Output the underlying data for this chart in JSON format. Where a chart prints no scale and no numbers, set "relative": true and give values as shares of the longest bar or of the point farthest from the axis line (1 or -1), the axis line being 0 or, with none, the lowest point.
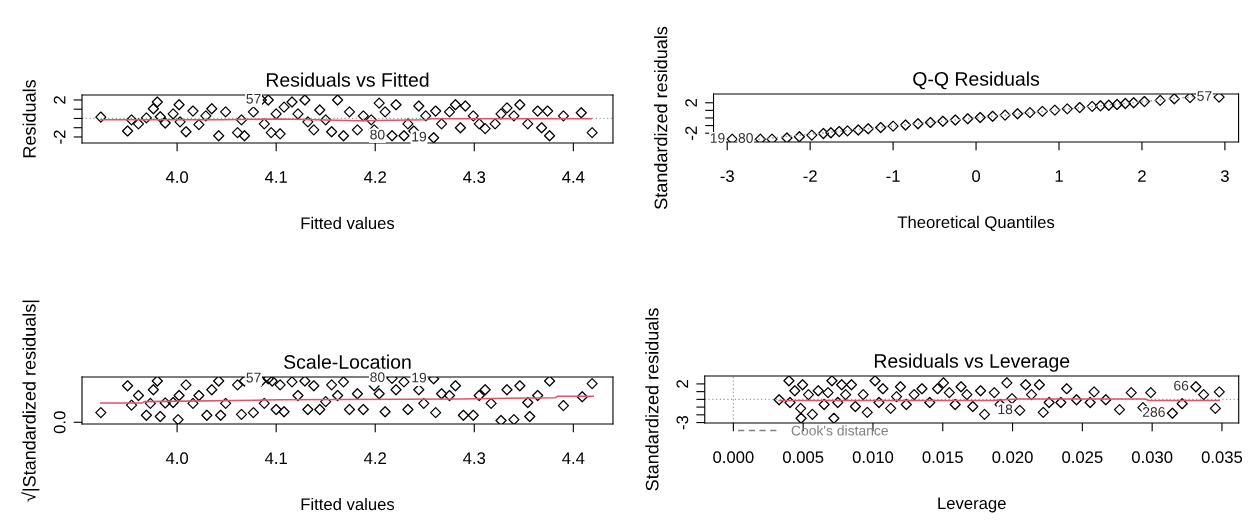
{
  "chart_data": [
    {
      "type": "scatter",
      "title": "Residuals vs Fitted",
      "xlabel": "Fitted values",
      "ylabel": "Residuals",
      "marker": "diamond",
      "xlim": [
        3.904,
        4.44
      ],
      "xticks": [
        {
          "value": 4.0,
          "label": "4.0"
        },
        4.1,
        4.2,
        4.3,
        4.4
      ],
      "ylim": [
        -2.65,
        2.54
      ],
      "yticks": [
        -2,
        {
          "value": -1,
          "label": null
        },
        {
          "value": 0,
          "label": null
        },
        {
          "value": 1,
          "label": null
        },
        2
      ],
      "ref_lines": [
        {
          "axis": "y",
          "value": 0,
          "color": "#a0a0a0",
          "line_style": "dotted"
        }
      ],
      "annotations": [
        {
          "text": "57",
          "x": 4.092,
          "y": 2.0
        },
        {
          "text": "80",
          "x": 4.217,
          "y": -1.87
        },
        {
          "text": "19",
          "x": 4.259,
          "y": -2.09
        }
      ],
      "series": [
        {
          "type": "scatter",
          "color": "#000000",
          "x": [
            3.923,
            3.95,
            3.954,
            3.961,
            3.969,
            3.976,
            3.98,
            3.983,
            3.988,
            3.996,
            4.002,
            4.003,
            4.009,
            4.016,
            4.022,
            4.029,
            4.035,
            4.042,
            4.049,
            4.061,
            4.065,
            4.068,
            4.077,
            4.085,
            4.088,
            4.092,
            4.095,
            4.1,
            4.104,
            4.108,
            4.116,
            4.122,
            4.129,
            4.132,
            4.138,
            4.144,
            4.15,
            4.156,
            4.162,
            4.168,
            4.174,
            4.182,
            4.188,
            4.196,
            4.199,
            4.204,
            4.21,
            4.217,
            4.221,
            4.229,
            4.233,
            4.239,
            4.244,
            4.251,
            4.259,
            4.261,
            4.267,
            4.275,
            4.281,
            4.286,
            4.291,
            4.299,
            4.305,
            4.311,
            4.321,
            4.327,
            4.333,
            4.34,
            4.346,
            4.354,
            4.364,
            4.368,
            4.374,
            4.376,
            4.39,
            4.408,
            4.419
          ],
          "values": [
            0.15,
            -1.35,
            -0.15,
            -0.58,
            0.06,
            1.05,
            1.78,
            0.19,
            -0.49,
            0.49,
            1.48,
            -0.37,
            -1.44,
            0.8,
            -0.67,
            0.28,
            1.05,
            -1.87,
            0.71,
            -1.53,
            -0.15,
            -1.87,
            0.71,
            2.0,
            -0.58,
            2.0,
            -1.53,
            0.49,
            -1.66,
            1.23,
            1.78,
            0.49,
            2.0,
            -0.37,
            -1.23,
            0.92,
            -0.15,
            -1.44,
            2.0,
            -1.87,
            0.71,
            -1.23,
            0.28,
            -0.15,
            -1.23,
            1.66,
            0.71,
            -1.87,
            1.48,
            -1.87,
            -0.58,
            -1.35,
            1.35,
            0.28,
            -2.09,
            0.8,
            -0.58,
            0.71,
            1.48,
            -1.01,
            1.35,
            0.28,
            -0.58,
            -1.1,
            -0.58,
            0.49,
            1.14,
            0.28,
            1.48,
            -0.58,
            0.8,
            -1.01,
            0.8,
            -1.87,
            0.28,
            0.62,
            -1.53
          ]
        },
        {
          "type": "line",
          "marker": "none",
          "color": "#df536b",
          "x": [
            3.923,
            4.043,
            4.104,
            4.184,
            4.251,
            4.257,
            4.325,
            4.418
          ],
          "values": [
            -0.15,
            -0.15,
            -0.06,
            -0.24,
            -0.15,
            -0.02,
            -0.02,
            -0.02
          ]
        }
      ]
    },
    {
      "type": "scatter",
      "title": "Q-Q Residuals",
      "xlabel": "Theoretical Quantiles",
      "ylabel": "Standardized residuals",
      "marker": "diamond",
      "xlim": [
        -3.165,
        3.165
      ],
      "xticks": [
        -3,
        -2,
        -1,
        0,
        1,
        2,
        3
      ],
      "ylim": [
        -3.16,
        3.16
      ],
      "yticks": [
        -2,
        {
          "value": -1,
          "label": null
        },
        {
          "value": 0,
          "label": null
        },
        {
          "value": 1,
          "label": null
        },
        2
      ],
      "annotations": [
        {
          "text": "19",
          "x": -2.94,
          "y": -2.79
        },
        {
          "text": "80",
          "x": -2.6,
          "y": -2.79
        },
        {
          "text": "57",
          "x": 2.93,
          "y": 2.74
        }
      ],
      "series": [
        {
          "type": "line",
          "marker": "none",
          "line_style": "dotted",
          "color": "#a0a0a0",
          "x": [
            -2.9,
            2.9
          ],
          "values": [
            -3.1,
            3.1
          ]
        },
        {
          "type": "scatter",
          "color": "#000000",
          "x": [
            -2.94,
            -2.6,
            -2.46,
            -2.28,
            -2.13,
            -1.98,
            -1.84,
            -1.75,
            -1.65,
            -1.55,
            -1.42,
            -1.3,
            -1.15,
            -1.0,
            -0.85,
            -0.7,
            -0.55,
            -0.4,
            -0.25,
            -0.1,
            0.05,
            0.2,
            0.35,
            0.5,
            0.65,
            0.8,
            0.95,
            1.1,
            1.25,
            1.4,
            1.5,
            1.6,
            1.7,
            1.8,
            1.9,
            2.03,
            2.22,
            2.39,
            2.58,
            2.93
          ],
          "values": [
            -2.79,
            -2.79,
            -2.79,
            -2.63,
            -2.47,
            -2.26,
            -2.05,
            -1.95,
            -1.79,
            -1.7,
            -1.58,
            -1.42,
            -1.25,
            -1.08,
            -0.92,
            -0.76,
            -0.59,
            -0.43,
            -0.27,
            -0.11,
            0.06,
            0.22,
            0.38,
            0.55,
            0.71,
            0.87,
            1.03,
            1.2,
            1.37,
            1.52,
            1.6,
            1.68,
            1.78,
            1.9,
            2.0,
            2.16,
            2.32,
            2.53,
            2.68,
            2.74
          ]
        }
      ]
    },
    {
      "type": "scatter",
      "title": "Scale-Location",
      "xlabel": "Fitted values",
      "ylabel": "√|Standardized residuals|",
      "marker": "diamond",
      "xlim": [
        3.904,
        4.44
      ],
      "xticks": [
        {
          "value": 4.0,
          "label": "4.0"
        },
        4.1,
        4.2,
        4.3,
        4.4
      ],
      "relative": true,
      "annotations": [
        "0.0",
        {
          "text": "57",
          "x": 4.092,
          "y": 0.99
        },
        {
          "text": "80",
          "x": 4.217,
          "y": 1
        },
        {
          "text": "19",
          "x": 4.259,
          "y": 0.99
        }
      ],
      "series": [
        {
          "type": "scatter",
          "color": "#000000",
          "x": [
            3.923,
            3.95,
            3.954,
            3.961,
            3.969,
            3.973,
            3.976,
            3.98,
            3.983,
            3.988,
            3.996,
            4.002,
            4.001,
            4.009,
            4.016,
            4.022,
            4.03,
            4.035,
            4.042,
            4.044,
            4.049,
            4.061,
            4.065,
            4.068,
            4.077,
            4.085,
            4.088,
            4.092,
            4.096,
            4.1,
            4.104,
            4.108,
            4.116,
            4.122,
            4.129,
            4.132,
            4.138,
            4.144,
            4.15,
            4.156,
            4.162,
            4.168,
            4.174,
            4.182,
            4.188,
            4.199,
            4.204,
            4.21,
            4.217,
            4.221,
            4.229,
            4.233,
            4.244,
            4.249,
            4.259,
            4.261,
            4.267,
            4.275,
            4.281,
            4.289,
            4.299,
            4.305,
            4.311,
            4.317,
            4.327,
            4.333,
            4.34,
            4.346,
            4.354,
            4.356,
            4.364,
            4.376,
            4.39,
            4.409,
            4.419
          ],
          "values": [
            0.22,
            0.83,
            0.39,
            0.61,
            0.16,
            0.43,
            0.74,
            0.94,
            0.13,
            0.44,
            0.45,
            0.61,
            0.06,
            0.85,
            0.43,
            0.61,
            0.16,
            0.74,
            0.94,
            0.16,
            0.43,
            0.85,
            0.18,
            0.94,
            0.22,
            0.94,
            0.43,
            0.99,
            0.94,
            0.29,
            0.85,
            0.24,
            0.92,
            0.61,
            0.94,
            0.29,
            0.83,
            0.29,
            0.47,
            0.85,
            0.61,
            0.92,
            0.29,
            0.65,
            0.29,
            0.83,
            0.65,
            0.24,
            1,
            0.74,
            0.92,
            0.29,
            0.74,
            0.43,
            0.99,
            0.22,
            0.65,
            0.61,
            0.83,
            0.16,
            0.16,
            0.61,
            0.74,
            0.43,
            0.04,
            0.74,
            0.06,
            0.83,
            0.45,
            0.13,
            0.61,
            0.94,
            0.38,
            0.58,
            0.88
          ]
        },
        {
          "type": "line",
          "marker": "none",
          "color": "#df536b",
          "x": [
            3.923,
            3.965,
            3.967,
            4.104,
            4.285,
            4.382,
            4.384,
            4.42
          ],
          "values": [
            0.44,
            0.44,
            0.47,
            0.51,
            0.53,
            0.56,
            0.59,
            0.59
          ]
        }
      ]
    },
    {
      "type": "scatter",
      "title": "Residuals vs Leverage",
      "xlabel": "Leverage",
      "ylabel": "Standardized residuals",
      "marker": "diamond",
      "legend": "bottom left",
      "xlim": [
        -0.00205,
        0.0362
      ],
      "xticks": [
        {
          "value": 0,
          "label": "0.000"
        },
        {
          "value": 0.005,
          "label": "0.005"
        },
        {
          "value": 0.01,
          "label": "0.010"
        },
        {
          "value": 0.015,
          "label": "0.015"
        },
        {
          "value": 0.02,
          "label": "0.020"
        },
        {
          "value": 0.025,
          "label": "0.025"
        },
        {
          "value": 0.03,
          "label": "0.030"
        },
        {
          "value": 0.035,
          "label": "0.035"
        }
      ],
      "ylim": [
        -3.06,
        3.02
      ],
      "yticks": [
        -3,
        {
          "value": -2,
          "label": null
        },
        {
          "value": -1,
          "label": null
        },
        {
          "value": 0,
          "label": null
        },
        {
          "value": 1,
          "label": null
        },
        2
      ],
      "ref_lines": [
        {
          "axis": "y",
          "value": 0,
          "color": "#a0a0a0",
          "line_style": "dotted"
        },
        {
          "axis": "x",
          "value": 0,
          "color": "#a0a0a0",
          "line_style": "dotted"
        }
      ],
      "annotations": [
        {
          "text": "66",
          "x": 0.03313,
          "y": 1.63
        },
        {
          "text": "286",
          "x": 0.03145,
          "y": -1.79
        },
        {
          "text": "18",
          "x": 0.02052,
          "y": -1.43
        }
      ],
      "series": [
        {
          "type": "scatter",
          "color": "#000000",
          "x": [
            0.00328,
            0.00398,
            0.00406,
            0.0044,
            0.00482,
            0.00485,
            0.00496,
            0.00538,
            0.00566,
            0.00608,
            0.0065,
            0.00678,
            0.00706,
            0.0072,
            0.00748,
            0.00776,
            0.00804,
            0.00846,
            0.00874,
            0.0093,
            0.00959,
            0.01015,
            0.01043,
            0.01071,
            0.01127,
            0.01169,
            0.01197,
            0.01239,
            0.01295,
            0.01351,
            0.01407,
            0.01463,
            0.01505,
            0.01547,
            0.01589,
            0.01631,
            0.01673,
            0.01715,
            0.01771,
            0.01799,
            0.01869,
            0.01911,
            0.01959,
            0.01996,
            0.02052,
            0.02094,
            0.02136,
            0.02192,
            0.0222,
            0.02262,
            0.02346,
            0.02388,
            0.02458,
            0.02556,
            0.02584,
            0.02668,
            0.02766,
            0.0285,
            0.02934,
            0.0299,
            0.03145,
            0.03215,
            0.03313,
            0.03369,
            0.03453,
            0.03481
          ],
          "values": [
            -0.05,
            2.4,
            -0.41,
            1.12,
            -1.17,
            -2.45,
            1.89,
            0.61,
            -1.94,
            1.12,
            -0.66,
            0.87,
            2.4,
            -2.45,
            -0.41,
            1.89,
            0.61,
            1.89,
            -0.92,
            0.61,
            -1.68,
            2.4,
            -0.41,
            1.38,
            -1.17,
            0.36,
            1.63,
            -0.66,
            0.61,
            1.38,
            -0.41,
            1.38,
            2.14,
            0.87,
            -0.66,
            1.63,
            0.61,
            -0.92,
            1.12,
            -1.94,
            0.87,
            -0.66,
            2.14,
            0.1,
            -1.43,
            1.89,
            0.61,
            1.89,
            -1.68,
            -0.41,
            -0.41,
            1.38,
            -0.05,
            -0.41,
            0.97,
            -0.05,
            -1.33,
            0.87,
            -1.07,
            0.87,
            -1.79,
            -0.56,
            1.63,
            0.61,
            -1.17,
            0.97
          ]
        },
        {
          "type": "line",
          "marker": "none",
          "color": "#df536b",
          "x": [
            0.00328,
            0.01855,
            0.02052,
            0.02948,
            0.02977,
            0.03481
          ],
          "values": [
            -0.15,
            -0.15,
            0.05,
            0.05,
            -0.15,
            -0.15
          ]
        },
        {
          "type": "line",
          "marker": "none",
          "line_style": "dashed",
          "name": "Cook's distance",
          "color": "#808080"
        }
      ]
    }
  ]
}
